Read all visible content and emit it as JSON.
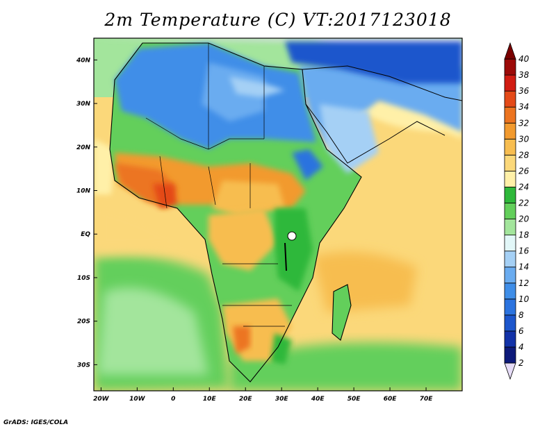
{
  "title": "2m Temperature (C) VT:2017123018",
  "credit": "GrADS: IGES/COLA",
  "map": {
    "lon_range": [
      -22,
      80
    ],
    "lat_range": [
      -36,
      45
    ],
    "lon_ticks": [
      {
        "value": -20,
        "label": "20W"
      },
      {
        "value": -10,
        "label": "10W"
      },
      {
        "value": 0,
        "label": "0"
      },
      {
        "value": 10,
        "label": "10E"
      },
      {
        "value": 20,
        "label": "20E"
      },
      {
        "value": 30,
        "label": "30E"
      },
      {
        "value": 40,
        "label": "40E"
      },
      {
        "value": 50,
        "label": "50E"
      },
      {
        "value": 60,
        "label": "60E"
      },
      {
        "value": 70,
        "label": "70E"
      }
    ],
    "lat_ticks": [
      {
        "value": 40,
        "label": "40N"
      },
      {
        "value": 30,
        "label": "30N"
      },
      {
        "value": 20,
        "label": "20N"
      },
      {
        "value": 10,
        "label": "10N"
      },
      {
        "value": 0,
        "label": "EQ"
      },
      {
        "value": -10,
        "label": "10S"
      },
      {
        "value": -20,
        "label": "20S"
      },
      {
        "value": -30,
        "label": "30S"
      }
    ]
  },
  "colorbar": {
    "levels": [
      "2",
      "4",
      "6",
      "8",
      "10",
      "12",
      "14",
      "16",
      "18",
      "20",
      "22",
      "24",
      "26",
      "28",
      "30",
      "32",
      "34",
      "36",
      "38",
      "40"
    ],
    "colors": [
      "#e6dcf7",
      "#0d1a7a",
      "#1232a8",
      "#1c56cc",
      "#2b73df",
      "#3f8ee8",
      "#6aacf0",
      "#a5d0f5",
      "#e2f7f8",
      "#a3e59c",
      "#63cf5b",
      "#2eb83a",
      "#fff0a8",
      "#fbd87a",
      "#f7bd50",
      "#f29a2e",
      "#ec7420",
      "#e44a18",
      "#d11c12",
      "#9c0a08",
      "#7a0000"
    ]
  }
}
